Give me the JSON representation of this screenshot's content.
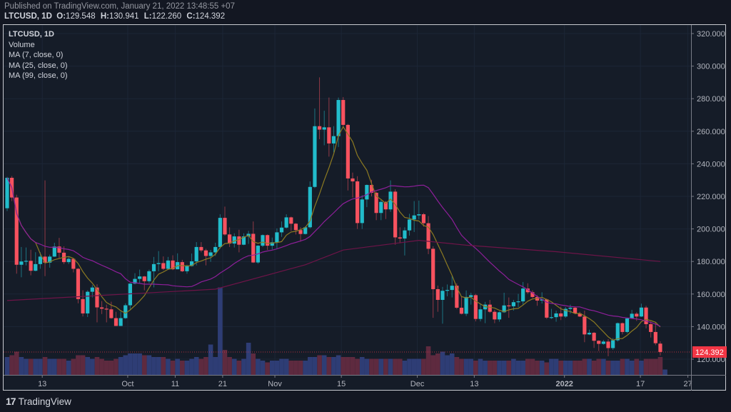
{
  "header": {
    "published": "Published on TradingView.com, January 21, 2022 13:48:55 +07",
    "symbol": "LTCUSD, 1D",
    "o_label": "O:",
    "o_value": "129.548",
    "h_label": "H:",
    "h_value": "130.941",
    "l_label": "L:",
    "l_value": "122.260",
    "c_label": "C:",
    "c_value": "124.392"
  },
  "legend": {
    "title": "LTCUSD, 1D",
    "volume": "Volume",
    "ma7": "MA (7, close, 0)",
    "ma25": "MA (25, close, 0)",
    "ma99": "MA (99, close, 0)"
  },
  "footer": {
    "logo_mark": "17",
    "brand": "TradingView"
  },
  "colors": {
    "up": "#22bccb",
    "down": "#f7525f",
    "vol_up": "#2e3d75",
    "vol_down": "#5e2a3f",
    "ma7": "#8c7a22",
    "ma25": "#8e1f9a",
    "ma99": "#6e1448",
    "last_price": "#f23645"
  },
  "chart_data": {
    "type": "candlestick",
    "symbol": "LTCUSD",
    "interval": "1D",
    "first_date": "2021-09-05",
    "last_price": "124.392",
    "ylim": [
      108,
      326
    ],
    "y_ticks": [
      "320.000",
      "300.000",
      "280.000",
      "260.000",
      "240.000",
      "220.000",
      "200.000",
      "180.000",
      "160.000",
      "140.000",
      "120.000"
    ],
    "x_ticks": [
      {
        "label": "13",
        "date": "2021-09-13"
      },
      {
        "label": "Oct",
        "date": "2021-10-01"
      },
      {
        "label": "11",
        "date": "2021-10-11"
      },
      {
        "label": "21",
        "date": "2021-10-21"
      },
      {
        "label": "Nov",
        "date": "2021-11-01"
      },
      {
        "label": "15",
        "date": "2021-11-15"
      },
      {
        "label": "Dec",
        "date": "2021-12-01"
      },
      {
        "label": "13",
        "date": "2021-12-13"
      },
      {
        "label": "2022",
        "date": "2022-01-01"
      },
      {
        "label": "17",
        "date": "2022-01-17"
      },
      {
        "label": "27",
        "date": "2022-01-27"
      }
    ],
    "ohlc": [
      [
        212.7,
        232,
        211,
        231.4
      ],
      [
        231.4,
        232.5,
        217.1,
        219.3
      ],
      [
        219.3,
        221,
        172.5,
        178
      ],
      [
        178,
        188.9,
        170.3,
        180
      ],
      [
        180,
        188.6,
        177.6,
        180.4
      ],
      [
        180.4,
        187.2,
        171.5,
        174.3
      ],
      [
        174.3,
        185.7,
        174,
        178.4
      ],
      [
        178.4,
        185.7,
        175.5,
        183
      ],
      [
        183,
        229.8,
        171,
        179.3
      ],
      [
        179.3,
        184.2,
        176.2,
        183
      ],
      [
        183,
        191.5,
        182.8,
        189.2
      ],
      [
        189.2,
        194.5,
        182,
        185.4
      ],
      [
        185.4,
        189.3,
        178.4,
        179.6
      ],
      [
        179.6,
        182.8,
        178.4,
        181.6
      ],
      [
        181.6,
        182,
        173.3,
        175.5
      ],
      [
        175.5,
        176,
        154.3,
        156.9
      ],
      [
        156.9,
        162.3,
        146.2,
        148.1
      ],
      [
        148.1,
        162.3,
        145.9,
        161.4
      ],
      [
        161.4,
        165.5,
        157.9,
        164
      ],
      [
        164,
        166,
        142.6,
        151.8
      ],
      [
        151.8,
        155.7,
        147.7,
        151
      ],
      [
        151,
        153.5,
        142.6,
        150.6
      ],
      [
        150.6,
        155.3,
        144.8,
        145.2
      ],
      [
        145.2,
        149.1,
        140.4,
        140.4
      ],
      [
        140.4,
        149.1,
        140.4,
        145.2
      ],
      [
        145.2,
        154.3,
        144.8,
        153.1
      ],
      [
        153.1,
        166.7,
        150.6,
        166.4
      ],
      [
        166.4,
        172.8,
        166,
        169.3
      ],
      [
        169.3,
        175,
        166.7,
        170.8
      ],
      [
        170.8,
        171.1,
        162.3,
        167.9
      ],
      [
        167.9,
        175,
        166.7,
        174
      ],
      [
        174,
        182.8,
        164.1,
        178.4
      ],
      [
        178.4,
        186.4,
        174,
        179
      ],
      [
        179,
        183.1,
        174.7,
        175.5
      ],
      [
        175.5,
        182.8,
        175.2,
        180.6
      ],
      [
        180.6,
        183.8,
        174.7,
        175.2
      ],
      [
        175.2,
        185,
        175.2,
        179.6
      ],
      [
        179.6,
        181,
        173.5,
        174
      ],
      [
        174,
        178,
        172.5,
        177.2
      ],
      [
        177.2,
        184.9,
        176.9,
        180.1
      ],
      [
        180.1,
        191.9,
        177.6,
        188.9
      ],
      [
        188.9,
        191.9,
        185.6,
        186.8
      ],
      [
        186.8,
        187.8,
        177.6,
        183.4
      ],
      [
        183.4,
        187.1,
        179.8,
        185.6
      ],
      [
        185.6,
        191.5,
        183.4,
        188.9
      ],
      [
        188.9,
        209,
        187.8,
        206.8
      ],
      [
        206.8,
        213.7,
        195.9,
        196.6
      ],
      [
        196.6,
        201,
        188.9,
        191
      ],
      [
        191,
        197.3,
        188.6,
        195.4
      ],
      [
        195.4,
        199.5,
        185.6,
        190.3
      ],
      [
        190.3,
        197.3,
        190,
        195.4
      ],
      [
        195.4,
        198.8,
        190.8,
        197
      ],
      [
        197,
        204.6,
        179.1,
        179.4
      ],
      [
        179.4,
        190,
        178.6,
        189.7
      ],
      [
        189.7,
        196.6,
        188.9,
        196.2
      ],
      [
        196.2,
        196.6,
        187.1,
        189.7
      ],
      [
        189.7,
        194.7,
        187.4,
        191.8
      ],
      [
        191.8,
        200.3,
        187.8,
        197.9
      ],
      [
        197.9,
        204.6,
        195.1,
        200.8
      ],
      [
        200.8,
        209,
        200.3,
        207.1
      ],
      [
        207.1,
        207.6,
        198.8,
        203.2
      ],
      [
        203.2,
        203.6,
        196.6,
        199.3
      ],
      [
        199.3,
        201,
        192.2,
        196.9
      ],
      [
        196.9,
        201.7,
        196.6,
        201
      ],
      [
        201,
        229.2,
        200.3,
        225.8
      ],
      [
        225.8,
        274,
        225.1,
        263.1
      ],
      [
        263.1,
        293.1,
        255.1,
        261
      ],
      [
        261,
        272.6,
        251.4,
        262.4
      ],
      [
        262.4,
        280.7,
        244.4,
        252.5
      ],
      [
        252.5,
        263.1,
        247,
        257
      ],
      [
        257,
        280.7,
        250.3,
        279.2
      ],
      [
        279.2,
        281,
        262.4,
        263.9
      ],
      [
        263.9,
        264.5,
        223.6,
        231
      ],
      [
        231,
        234.6,
        219.3,
        229.2
      ],
      [
        229.2,
        232.4,
        200,
        203.6
      ],
      [
        203.6,
        220.7,
        200,
        218.1
      ],
      [
        218.1,
        227.3,
        213.4,
        227
      ],
      [
        227,
        230.2,
        220,
        222.2
      ],
      [
        222.2,
        222.9,
        205.4,
        209.8
      ],
      [
        209.8,
        217.8,
        205.4,
        216.6
      ],
      [
        216.6,
        217.1,
        206.1,
        212
      ],
      [
        212,
        229.8,
        210.5,
        222.9
      ],
      [
        222.9,
        224.4,
        190.3,
        194.8
      ],
      [
        194.8,
        201,
        191.2,
        194.1
      ],
      [
        194.1,
        201,
        183.7,
        199.1
      ],
      [
        199.1,
        209.3,
        195.9,
        205.8
      ],
      [
        205.8,
        217.1,
        198.1,
        208.3
      ],
      [
        208.3,
        217.4,
        205.8,
        209
      ],
      [
        209,
        209.8,
        201.4,
        203.5
      ],
      [
        203.5,
        207.9,
        184.5,
        187.8
      ],
      [
        187.8,
        189.3,
        145.4,
        163
      ],
      [
        163,
        165.2,
        149.1,
        156.4
      ],
      [
        156.4,
        164.4,
        141.8,
        162
      ],
      [
        162,
        165.9,
        158.6,
        162.5
      ],
      [
        162.5,
        171,
        157.9,
        165.1
      ],
      [
        165.1,
        166.6,
        150.8,
        151.6
      ],
      [
        151.6,
        158.6,
        147.5,
        147.9
      ],
      [
        147.9,
        162.2,
        146.5,
        158.2
      ],
      [
        158.2,
        160.8,
        153.5,
        159.3
      ],
      [
        159.3,
        160.1,
        143.2,
        144.7
      ],
      [
        144.7,
        154.2,
        143.2,
        150.6
      ],
      [
        150.6,
        155.2,
        142.1,
        153.5
      ],
      [
        153.5,
        156.4,
        148.4,
        149.1
      ],
      [
        149.1,
        150.3,
        142.1,
        144.4
      ],
      [
        144.4,
        149.4,
        143,
        148.8
      ],
      [
        148.8,
        160.8,
        148.4,
        153
      ],
      [
        153,
        157.9,
        145.4,
        152.5
      ],
      [
        152.5,
        156.4,
        149.8,
        155
      ],
      [
        155,
        160.1,
        152,
        155.5
      ],
      [
        155.5,
        167.4,
        153.5,
        163.4
      ],
      [
        163.4,
        166.6,
        160.1,
        161.1
      ],
      [
        161.1,
        162.3,
        157.6,
        158.2
      ],
      [
        158.2,
        159.3,
        152.8,
        156
      ],
      [
        156,
        161.1,
        154.2,
        156.7
      ],
      [
        156.7,
        157.2,
        144.7,
        145.5
      ],
      [
        145.5,
        150.9,
        144.7,
        145.8
      ],
      [
        145.8,
        149.8,
        143,
        148.1
      ],
      [
        148.1,
        152.3,
        144,
        146.2
      ],
      [
        146.2,
        152,
        145.4,
        150.9
      ],
      [
        150.9,
        153.5,
        148,
        151.6
      ],
      [
        151.6,
        152,
        147.6,
        148.1
      ],
      [
        148.1,
        149.1,
        145.9,
        146.2
      ],
      [
        146.2,
        149.8,
        130.4,
        135.2
      ],
      [
        135.2,
        138.1,
        134.8,
        136.2
      ],
      [
        136.2,
        136.7,
        126.9,
        131.3
      ],
      [
        131.3,
        131.6,
        125,
        129.4
      ],
      [
        129.4,
        131.8,
        128.9,
        130.8
      ],
      [
        130.8,
        132.3,
        121.8,
        126.8
      ],
      [
        126.8,
        133,
        125.7,
        131.6
      ],
      [
        131.6,
        142.5,
        130.8,
        142.1
      ],
      [
        142.1,
        142.5,
        135.2,
        136.7
      ],
      [
        136.7,
        145.4,
        135.9,
        145
      ],
      [
        145,
        150.3,
        144.7,
        147.9
      ],
      [
        147.9,
        148.8,
        143.5,
        146.2
      ],
      [
        146.2,
        154.1,
        145.9,
        151.7
      ],
      [
        151.7,
        152.8,
        138.9,
        141.5
      ],
      [
        141.5,
        143.2,
        133.3,
        136.7
      ],
      [
        136.7,
        142.5,
        128.6,
        129.8
      ],
      [
        129.548,
        130.941,
        122.26,
        124.392
      ]
    ],
    "volume_relative": [
      1.0,
      1.1,
      1.3,
      1.0,
      0.9,
      0.9,
      0.9,
      0.9,
      1.0,
      0.9,
      0.9,
      0.9,
      0.9,
      0.8,
      0.9,
      1.1,
      1.1,
      1.0,
      0.9,
      1.0,
      0.9,
      0.8,
      0.8,
      0.9,
      1.0,
      1.1,
      1.2,
      1.2,
      1.2,
      1.1,
      1.1,
      1.0,
      1.0,
      1.0,
      0.9,
      0.8,
      0.9,
      0.8,
      0.8,
      0.9,
      1.0,
      0.9,
      1.0,
      1.7,
      1.0,
      4.9,
      1.4,
      1.0,
      0.9,
      0.8,
      0.9,
      1.8,
      1.2,
      0.9,
      0.8,
      0.7,
      0.8,
      0.8,
      0.9,
      0.9,
      0.8,
      0.8,
      0.8,
      0.8,
      1.0,
      1.0,
      1.1,
      1.1,
      1.0,
      1.0,
      1.1,
      1.0,
      1.0,
      1.0,
      0.9,
      1.0,
      0.9,
      0.9,
      0.9,
      0.9,
      0.9,
      0.9,
      0.9,
      0.9,
      0.8,
      0.9,
      0.9,
      0.9,
      0.9,
      1.6,
      1.1,
      1.2,
      1.3,
      1.1,
      1.2,
      1.0,
      0.9,
      0.9,
      0.9,
      0.8,
      0.9,
      0.8,
      0.8,
      0.8,
      0.8,
      0.8,
      0.8,
      0.9,
      0.8,
      0.8,
      0.9,
      0.9,
      0.8,
      0.8,
      0.7,
      0.9,
      0.9,
      0.8,
      0.8,
      0.8,
      0.8,
      0.8,
      0.9,
      0.9,
      0.8,
      0.9,
      0.9,
      0.8,
      0.8,
      0.8,
      0.9,
      0.9,
      0.8,
      0.9,
      0.8,
      0.9,
      0.9,
      0.9,
      1.0,
      0.3
    ],
    "ma99_points": [
      [
        0,
        156
      ],
      [
        44,
        163
      ],
      [
        63,
        178
      ],
      [
        71,
        187
      ],
      [
        87,
        193
      ],
      [
        97,
        190
      ],
      [
        116,
        186
      ],
      [
        138,
        180
      ]
    ]
  }
}
